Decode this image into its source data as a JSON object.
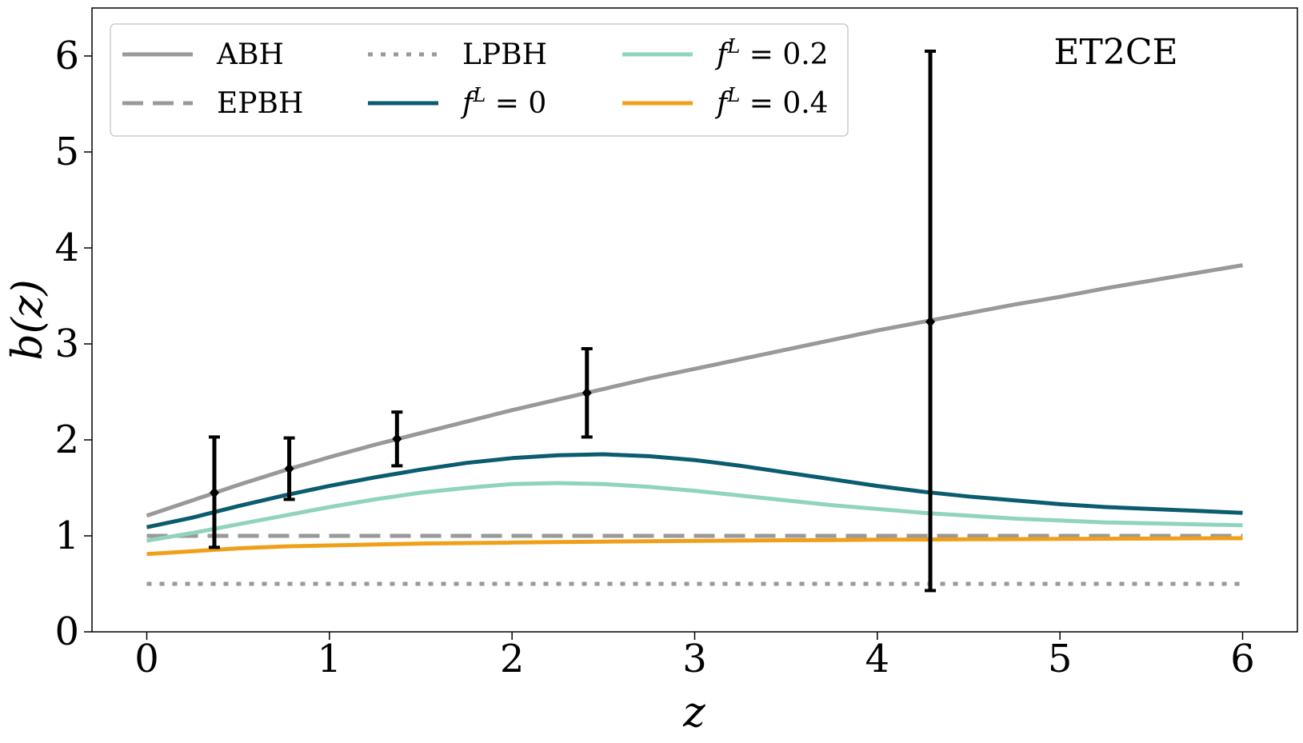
{
  "chart_data": {
    "type": "line",
    "xlabel": "z",
    "ylabel": "b(z)",
    "xlim": [
      -0.3,
      6.3
    ],
    "ylim": [
      0,
      6.5
    ],
    "xticks": [
      "0",
      "1",
      "2",
      "3",
      "4",
      "5",
      "6"
    ],
    "yticks": [
      "0",
      "1",
      "2",
      "3",
      "4",
      "5",
      "6"
    ],
    "annotation": "ET2CE",
    "legend_placement": "top-left",
    "grid": false,
    "x": [
      0,
      0.25,
      0.5,
      0.75,
      1.0,
      1.25,
      1.5,
      1.75,
      2.0,
      2.25,
      2.5,
      2.75,
      3.0,
      3.25,
      3.5,
      3.75,
      4.0,
      4.25,
      4.5,
      4.75,
      5.0,
      5.25,
      5.5,
      5.75,
      6.0
    ],
    "series": [
      {
        "name": "ABH",
        "color": "#999999",
        "style": "solid",
        "values": [
          1.21,
          1.37,
          1.53,
          1.68,
          1.82,
          1.95,
          2.07,
          2.19,
          2.31,
          2.42,
          2.53,
          2.64,
          2.74,
          2.84,
          2.94,
          3.04,
          3.14,
          3.23,
          3.32,
          3.41,
          3.49,
          3.58,
          3.66,
          3.74,
          3.82
        ]
      },
      {
        "name": "EPBH",
        "color": "#999999",
        "style": "dashed",
        "values": [
          1.0,
          1.0,
          1.0,
          1.0,
          1.0,
          1.0,
          1.0,
          1.0,
          1.0,
          1.0,
          1.0,
          1.0,
          1.0,
          1.0,
          1.0,
          1.0,
          1.0,
          1.0,
          1.0,
          1.0,
          1.0,
          1.0,
          1.0,
          1.0,
          1.0
        ]
      },
      {
        "name": "LPBH",
        "color": "#999999",
        "style": "dotted",
        "values": [
          0.5,
          0.5,
          0.5,
          0.5,
          0.5,
          0.5,
          0.5,
          0.5,
          0.5,
          0.5,
          0.5,
          0.5,
          0.5,
          0.5,
          0.5,
          0.5,
          0.5,
          0.5,
          0.5,
          0.5,
          0.5,
          0.5,
          0.5,
          0.5,
          0.5
        ]
      },
      {
        "name": "f^L = 0",
        "color": "#0b5c6e",
        "style": "solid",
        "values": [
          1.09,
          1.19,
          1.31,
          1.42,
          1.52,
          1.61,
          1.69,
          1.76,
          1.81,
          1.84,
          1.85,
          1.83,
          1.79,
          1.73,
          1.66,
          1.59,
          1.52,
          1.46,
          1.41,
          1.37,
          1.33,
          1.3,
          1.28,
          1.26,
          1.24
        ]
      },
      {
        "name": "f^L = 0.2",
        "color": "#90d4bd",
        "style": "solid",
        "values": [
          0.95,
          1.03,
          1.12,
          1.21,
          1.3,
          1.38,
          1.45,
          1.5,
          1.54,
          1.55,
          1.54,
          1.51,
          1.47,
          1.42,
          1.37,
          1.32,
          1.28,
          1.24,
          1.21,
          1.18,
          1.16,
          1.14,
          1.13,
          1.12,
          1.11
        ]
      },
      {
        "name": "f^L = 0.4",
        "color": "#f0a018",
        "style": "solid",
        "values": [
          0.81,
          0.84,
          0.87,
          0.89,
          0.9,
          0.91,
          0.92,
          0.925,
          0.93,
          0.935,
          0.94,
          0.944,
          0.948,
          0.951,
          0.954,
          0.957,
          0.96,
          0.962,
          0.964,
          0.966,
          0.968,
          0.97,
          0.972,
          0.974,
          0.975
        ]
      }
    ],
    "errorbars": {
      "color": "#000000",
      "points": [
        {
          "x": 0.37,
          "y": 1.45,
          "low": 0.88,
          "high": 2.03
        },
        {
          "x": 0.78,
          "y": 1.7,
          "low": 1.38,
          "high": 2.02
        },
        {
          "x": 1.37,
          "y": 2.01,
          "low": 1.73,
          "high": 2.29
        },
        {
          "x": 2.41,
          "y": 2.49,
          "low": 2.03,
          "high": 2.95
        },
        {
          "x": 4.29,
          "y": 3.23,
          "low": 0.43,
          "high": 6.05
        }
      ]
    }
  }
}
